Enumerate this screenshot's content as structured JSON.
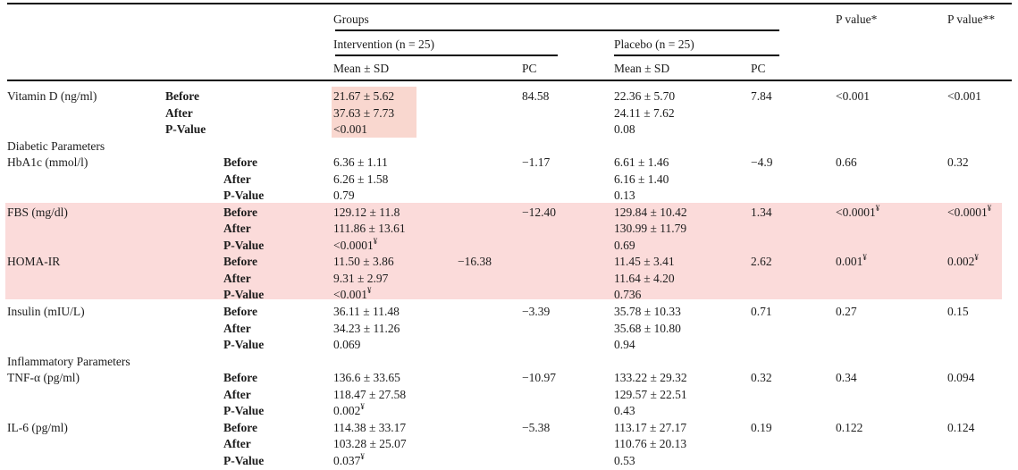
{
  "table": {
    "header": {
      "groups_label": "Groups",
      "intervention_label": "Intervention (n = 25)",
      "placebo_label": "Placebo (n = 25)",
      "mean_sd_label": "Mean ± SD",
      "pc_label": "PC",
      "p_value1_label": "P value*",
      "p_value2_label": "P value**"
    },
    "row_labels": [
      "Before",
      "After",
      "P-Value"
    ],
    "rows": [
      {
        "type": "param",
        "name": "Vitamin D (ng/ml)",
        "indent": "near",
        "highlight": "mean-box",
        "intervention": [
          "21.67 ± 5.62",
          "37.63 ± 7.73",
          "<0.001"
        ],
        "intervention_pc": "84.58",
        "placebo": [
          "22.36 ± 5.70",
          "24.11 ± 7.62",
          "0.08"
        ],
        "placebo_pc": "7.84",
        "p_value1": "<0.001",
        "p_value2": "<0.001"
      },
      {
        "type": "section",
        "name": "Diabetic Parameters"
      },
      {
        "type": "param",
        "name": "HbA1c (mmol/l)",
        "indent": "far",
        "intervention": [
          "6.36 ± 1.11",
          "6.26 ± 1.58",
          "0.79"
        ],
        "intervention_pc": "−1.17",
        "placebo": [
          "6.61 ± 1.46",
          "6.16 ± 1.40",
          "0.13"
        ],
        "placebo_pc": "−4.9",
        "p_value1": "0.66",
        "p_value2": "0.32"
      },
      {
        "type": "param",
        "name": "FBS (mg/dl)",
        "indent": "far",
        "highlight": "row-band",
        "intervention": [
          "129.12 ± 11.8",
          "111.86 ± 13.61",
          "<0.0001¥"
        ],
        "intervention_pc": "−12.40",
        "placebo": [
          "129.84 ± 10.42",
          "130.99 ± 11.79",
          "0.69"
        ],
        "placebo_pc": "1.34",
        "p_value1": "<0.0001¥",
        "p_value2": "<0.0001¥"
      },
      {
        "type": "param",
        "name": "HOMA-IR",
        "indent": "far",
        "highlight": "row-band",
        "pc_shifted": true,
        "intervention": [
          "11.50 ± 3.86",
          "9.31 ± 2.97",
          "<0.001¥"
        ],
        "intervention_pc": "−16.38",
        "placebo": [
          "11.45 ± 3.41",
          "11.64 ± 4.20",
          "0.736"
        ],
        "placebo_pc": "2.62",
        "p_value1": "0.001¥",
        "p_value2": "0.002¥"
      },
      {
        "type": "param",
        "name": "Insulin (mIU/L)",
        "indent": "far",
        "intervention": [
          "36.11 ± 11.48",
          "34.23 ± 11.26",
          "0.069"
        ],
        "intervention_pc": "−3.39",
        "placebo": [
          "35.78 ± 10.33",
          "35.68 ± 10.80",
          "0.94"
        ],
        "placebo_pc": "0.71",
        "p_value1": "0.27",
        "p_value2": "0.15"
      },
      {
        "type": "section",
        "name": "Inflammatory Parameters"
      },
      {
        "type": "param",
        "name": "TNF-α (pg/ml)",
        "indent": "far",
        "intervention": [
          "136.6 ± 33.65",
          "118.47 ± 27.58",
          "0.002¥"
        ],
        "intervention_pc": "−10.97",
        "placebo": [
          "133.22 ± 29.32",
          "129.57 ± 22.51",
          "0.43"
        ],
        "placebo_pc": "0.32",
        "p_value1": "0.34",
        "p_value2": "0.094"
      },
      {
        "type": "param",
        "name": "IL-6 (pg/ml)",
        "indent": "far",
        "intervention": [
          "114.38 ± 33.17",
          "103.28 ± 25.07",
          "0.037¥"
        ],
        "intervention_pc": "−5.38",
        "placebo": [
          "113.17 ± 27.17",
          "110.76 ± 20.13",
          "0.53"
        ],
        "placebo_pc": "0.19",
        "p_value1": "0.122",
        "p_value2": "0.124"
      }
    ],
    "superscript_marker": "¥"
  },
  "colors": {
    "highlight_row_band": "#fbdbda",
    "highlight_mean_box": "#f9d7cf",
    "rule": "#0a0a0a",
    "text": "#1c1c1c"
  }
}
